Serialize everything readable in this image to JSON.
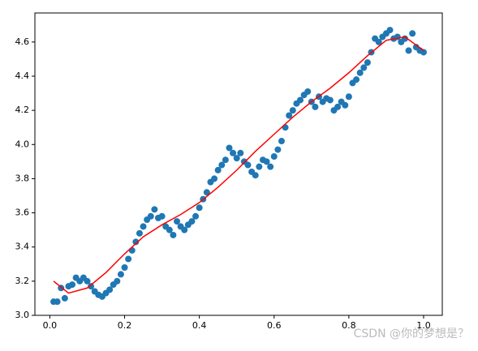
{
  "chart_data": {
    "type": "scatter",
    "xlim": [
      -0.04,
      1.05
    ],
    "ylim": [
      3.0,
      4.77
    ],
    "xticks": [
      {
        "value": 0,
        "label": "0.0"
      },
      0.2,
      0.4,
      0.6,
      0.8,
      {
        "value": 1,
        "label": "1.0"
      }
    ],
    "yticks": [
      {
        "value": 3,
        "label": "3.0"
      },
      3.2,
      3.4,
      3.6,
      3.8,
      {
        "value": 4,
        "label": "4.0"
      },
      4.2,
      4.4,
      4.6
    ],
    "series": [
      {
        "type": "scatter",
        "color": "#1f77b4",
        "x": [
          0.01,
          0.02,
          0.03,
          0.04,
          0.05,
          0.06,
          0.07,
          0.08,
          0.09,
          0.1,
          0.11,
          0.12,
          0.13,
          0.14,
          0.15,
          0.16,
          0.17,
          0.18,
          0.19,
          0.2,
          0.21,
          0.22,
          0.23,
          0.24,
          0.25,
          0.26,
          0.27,
          0.28,
          0.29,
          0.3,
          0.31,
          0.32,
          0.33,
          0.34,
          0.35,
          0.36,
          0.37,
          0.38,
          0.39,
          0.4,
          0.41,
          0.42,
          0.43,
          0.44,
          0.45,
          0.46,
          0.47,
          0.48,
          0.49,
          0.5,
          0.51,
          0.52,
          0.53,
          0.54,
          0.55,
          0.56,
          0.57,
          0.58,
          0.59,
          0.6,
          0.61,
          0.62,
          0.63,
          0.64,
          0.65,
          0.66,
          0.67,
          0.68,
          0.69,
          0.7,
          0.71,
          0.72,
          0.73,
          0.74,
          0.75,
          0.76,
          0.77,
          0.78,
          0.79,
          0.8,
          0.81,
          0.82,
          0.83,
          0.84,
          0.85,
          0.86,
          0.87,
          0.88,
          0.89,
          0.9,
          0.91,
          0.92,
          0.93,
          0.94,
          0.95,
          0.96,
          0.97,
          0.98,
          0.99,
          1.0
        ],
        "values": [
          3.08,
          3.08,
          3.16,
          3.1,
          3.17,
          3.18,
          3.22,
          3.2,
          3.22,
          3.2,
          3.17,
          3.14,
          3.12,
          3.11,
          3.13,
          3.15,
          3.18,
          3.2,
          3.24,
          3.28,
          3.33,
          3.38,
          3.43,
          3.48,
          3.52,
          3.56,
          3.58,
          3.62,
          3.57,
          3.58,
          3.52,
          3.5,
          3.47,
          3.55,
          3.52,
          3.5,
          3.53,
          3.55,
          3.58,
          3.63,
          3.68,
          3.72,
          3.78,
          3.8,
          3.85,
          3.88,
          3.91,
          3.98,
          3.95,
          3.92,
          3.95,
          3.9,
          3.88,
          3.84,
          3.82,
          3.87,
          3.91,
          3.9,
          3.87,
          3.93,
          3.97,
          4.02,
          4.1,
          4.17,
          4.2,
          4.24,
          4.26,
          4.29,
          4.31,
          4.25,
          4.22,
          4.28,
          4.25,
          4.27,
          4.26,
          4.2,
          4.22,
          4.25,
          4.23,
          4.28,
          4.36,
          4.38,
          4.42,
          4.45,
          4.48,
          4.54,
          4.62,
          4.6,
          4.63,
          4.65,
          4.67,
          4.62,
          4.63,
          4.6,
          4.62,
          4.55,
          4.65,
          4.57,
          4.55,
          4.54
        ]
      },
      {
        "type": "line",
        "color": "#ff0000",
        "x": [
          0.01,
          0.05,
          0.1,
          0.15,
          0.2,
          0.25,
          0.3,
          0.35,
          0.4,
          0.45,
          0.5,
          0.55,
          0.6,
          0.65,
          0.7,
          0.75,
          0.8,
          0.85,
          0.9,
          0.95,
          1.0
        ],
        "values": [
          3.2,
          3.13,
          3.16,
          3.25,
          3.36,
          3.46,
          3.53,
          3.59,
          3.66,
          3.75,
          3.85,
          3.96,
          4.06,
          4.16,
          4.25,
          4.33,
          4.42,
          4.52,
          4.61,
          4.63,
          4.55
        ]
      }
    ],
    "watermark": "CSDN @你的梦想是？"
  }
}
